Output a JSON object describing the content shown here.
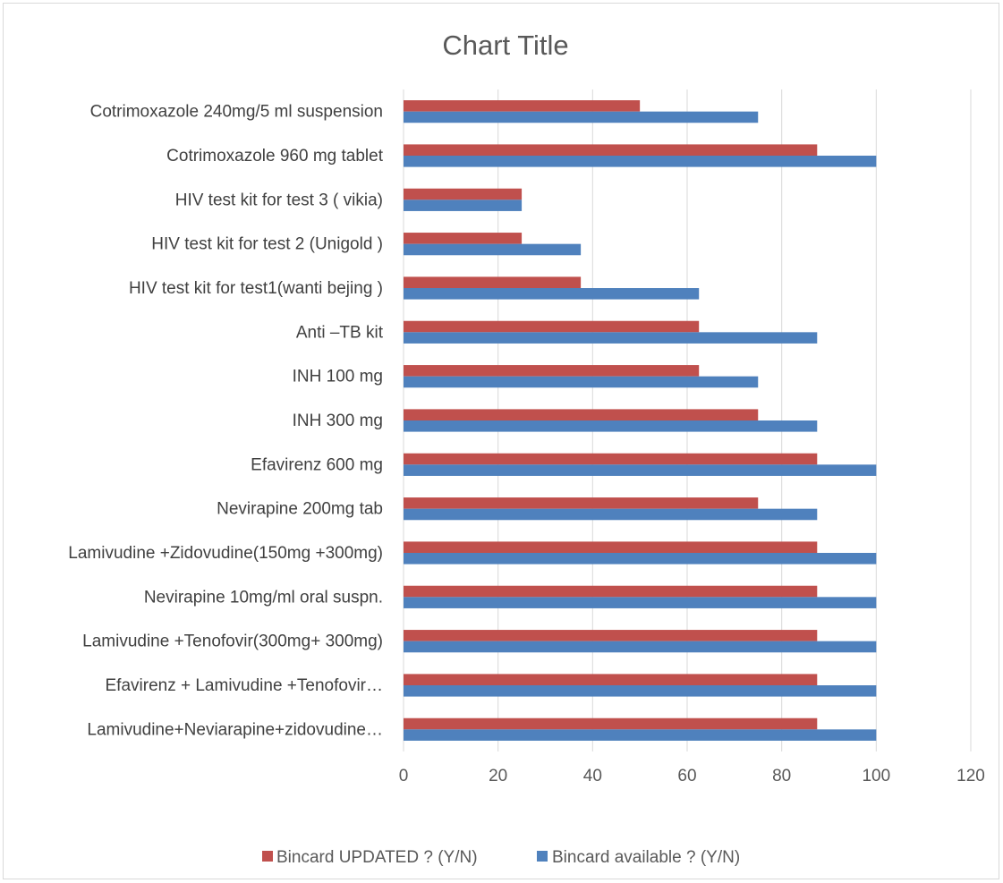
{
  "chart_data": {
    "type": "bar",
    "orientation": "horizontal",
    "title": "Chart Title",
    "categories": [
      "Lamivudine+Neviarapine+zidovudine…",
      "Efavirenz + Lamivudine +Tenofovir…",
      "Lamivudine +Tenofovir(300mg+ 300mg)",
      "Nevirapine  10mg/ml oral suspn.",
      "Lamivudine +Zidovudine(150mg +300mg)",
      "Nevirapine 200mg tab",
      "Efavirenz 600 mg",
      "INH  300 mg",
      "INH 100 mg",
      "Anti –TB kit",
      "HIV test kit for test1(wanti bejing )",
      "HIV test kit for test 2 (Unigold  )",
      "HIV test kit for test 3 ( vikia)",
      "Cotrimoxazole 960 mg tablet",
      "Cotrimoxazole 240mg/5 ml suspension"
    ],
    "series": [
      {
        "name": "Bincard available ? (Y/N)",
        "color": "#4F81BD",
        "values": [
          100,
          100,
          100,
          100,
          100,
          87.5,
          100,
          87.5,
          75,
          87.5,
          62.5,
          37.5,
          25,
          100,
          75
        ]
      },
      {
        "name": "Bincard UPDATED ? (Y/N)",
        "color": "#C0504D",
        "values": [
          87.5,
          87.5,
          87.5,
          87.5,
          87.5,
          75,
          87.5,
          75,
          62.5,
          62.5,
          37.5,
          25,
          25,
          87.5,
          50
        ]
      }
    ],
    "xlim": [
      0,
      120
    ],
    "xticks": [
      "0",
      "20",
      "40",
      "60",
      "80",
      "100",
      "120"
    ],
    "grid": true,
    "legend_position": "bottom",
    "legend_order": [
      "Bincard UPDATED ? (Y/N)",
      "Bincard available ? (Y/N)"
    ]
  }
}
